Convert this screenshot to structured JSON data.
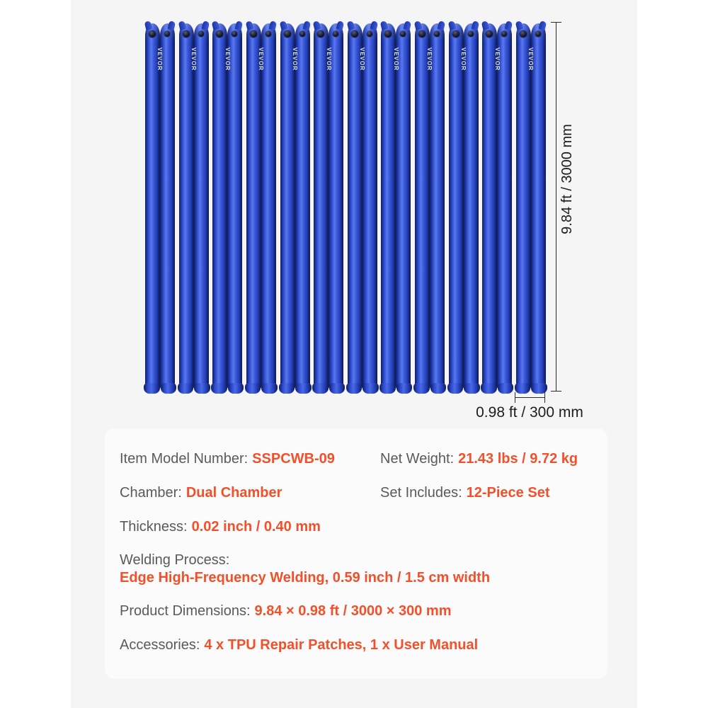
{
  "page": {
    "background_color": "#ffffff",
    "stage_background_color": "#f5f5f6"
  },
  "figure": {
    "brand_label": "VEVOR",
    "tube_count": 12,
    "tube_color": "#2c4bd1",
    "valve_color": "#0a0c1a",
    "height_dimension_label": "9.84 ft / 3000 mm",
    "width_dimension_label": "0.98 ft / 300 mm"
  },
  "specs": {
    "panel_background_color": "#fbfbfb",
    "accent_color": "#f2502a",
    "label_color": "#595a5c",
    "model": {
      "label": "Item Model Number:",
      "value": "SSPCWB-09"
    },
    "net_weight": {
      "label": "Net Weight:",
      "value": "21.43 lbs / 9.72 kg"
    },
    "chamber": {
      "label": "Chamber:",
      "value": "Dual Chamber"
    },
    "set_includes": {
      "label": "Set Includes:",
      "value": "12-Piece Set"
    },
    "thickness": {
      "label": "Thickness:",
      "value": "0.02 inch / 0.40 mm"
    },
    "welding_process": {
      "label": "Welding Process:",
      "value": "Edge High-Frequency Welding, 0.59 inch / 1.5 cm width"
    },
    "product_dimensions": {
      "label": "Product Dimensions:",
      "value": "9.84 × 0.98 ft / 3000 × 300 mm"
    },
    "accessories": {
      "label": "Accessories:",
      "value": "4 x TPU Repair Patches, 1 x User Manual"
    }
  }
}
